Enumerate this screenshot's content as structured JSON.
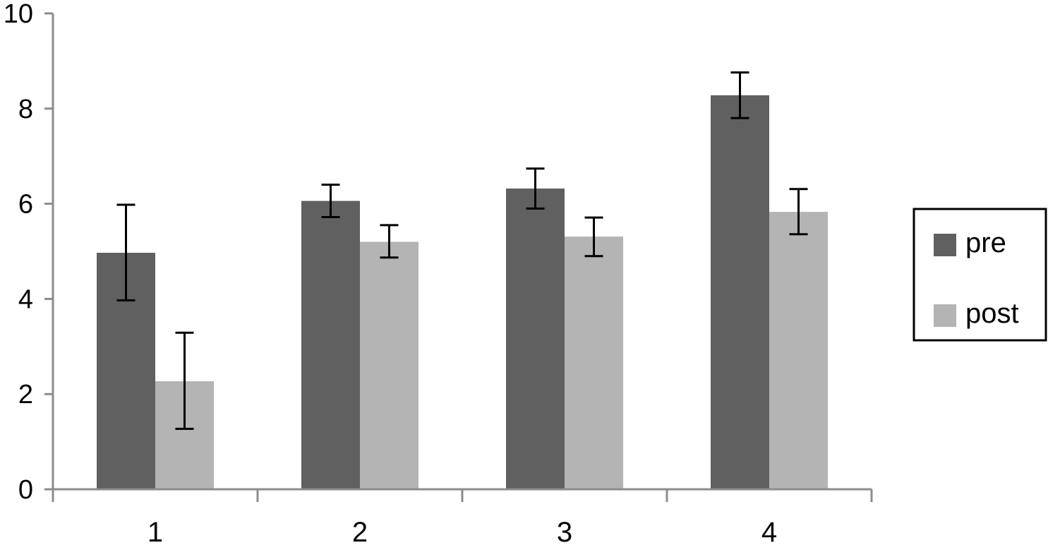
{
  "chart_data": {
    "type": "bar",
    "title": "",
    "xlabel": "",
    "ylabel": "",
    "categories": [
      "1",
      "2",
      "3",
      "4"
    ],
    "ylim": [
      0,
      10
    ],
    "yticks": [
      "0",
      "2",
      "4",
      "6",
      "8",
      "10"
    ],
    "grid": false,
    "legend_position": "right",
    "series": [
      {
        "name": "pre",
        "color": "#606060",
        "values": [
          4.97,
          6.06,
          6.32,
          8.28
        ],
        "error_low": [
          3.97,
          5.72,
          5.9,
          7.8
        ],
        "error_high": [
          5.98,
          6.4,
          6.74,
          8.76
        ]
      },
      {
        "name": "post",
        "color": "#b4b4b4",
        "values": [
          2.27,
          5.2,
          5.31,
          5.83
        ],
        "error_low": [
          1.27,
          4.87,
          4.9,
          5.36
        ],
        "error_high": [
          3.29,
          5.55,
          5.71,
          6.31
        ]
      }
    ]
  }
}
